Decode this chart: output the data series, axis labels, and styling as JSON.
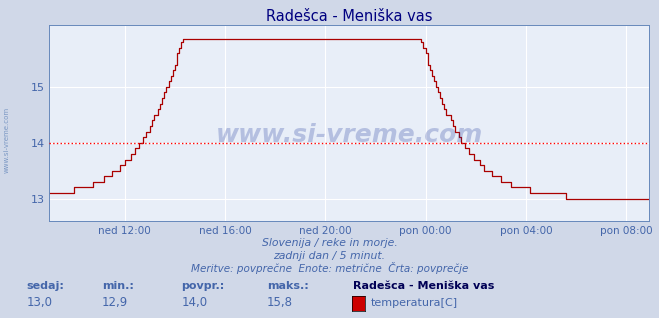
{
  "title": "Radešca - Meniška vas",
  "title_color": "#000080",
  "bg_color": "#d0d8e8",
  "plot_bg_color": "#e8eef8",
  "grid_color": "#ffffff",
  "avg_line_color": "#ff0000",
  "avg_value": 14.0,
  "yticks": [
    13,
    14,
    15
  ],
  "y_axis_min": 12.6,
  "y_axis_max": 16.1,
  "line_color": "#aa0000",
  "x_labels": [
    "ned 12:00",
    "ned 16:00",
    "ned 20:00",
    "pon 00:00",
    "pon 04:00",
    "pon 08:00"
  ],
  "subtitle1": "Slovenija / reke in morje.",
  "subtitle2": "zadnji dan / 5 minut.",
  "subtitle3": "Meritve: povprečne  Enote: metrične  Črta: povprečje",
  "text_color": "#4466aa",
  "sedaj_label": "sedaj:",
  "min_label": "min.:",
  "povpr_label": "povpr.:",
  "maks_label": "maks.:",
  "sedaj_val": "13,0",
  "min_val": "12,9",
  "povpr_val": "14,0",
  "maks_val": "15,8",
  "station_label": "Radešca - Meniška vas",
  "sensor_label": "temperatura[C]",
  "sensor_color": "#cc0000",
  "watermark_text": "www.si-vreme.com",
  "watermark_color": "#1a3399",
  "left_text": "www.si-vreme.com",
  "left_text_color": "#6688bb",
  "n_points": 288,
  "x_tick_pos": [
    36,
    84,
    132,
    180,
    228,
    276
  ]
}
